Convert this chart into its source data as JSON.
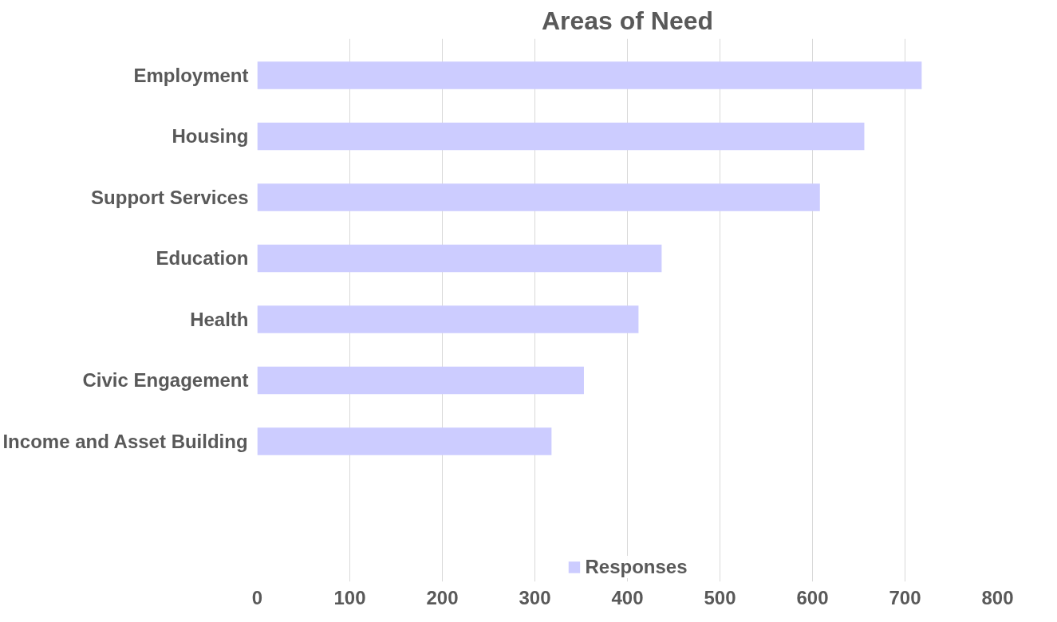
{
  "chart_data": {
    "type": "bar",
    "orientation": "horizontal",
    "title": "Areas of Need",
    "categories": [
      "Employment",
      "Housing",
      "Support Services",
      "Education",
      "Health",
      "Civic Engagement",
      "Income and Asset Building"
    ],
    "series": [
      {
        "name": "Responses",
        "color": "#ccccff",
        "values": [
          718,
          656,
          608,
          437,
          412,
          353,
          318
        ]
      }
    ],
    "xlim": [
      0,
      800
    ],
    "xticks": [
      0,
      100,
      200,
      300,
      400,
      500,
      600,
      700,
      800
    ],
    "grid": "x",
    "legend": "bottom"
  }
}
